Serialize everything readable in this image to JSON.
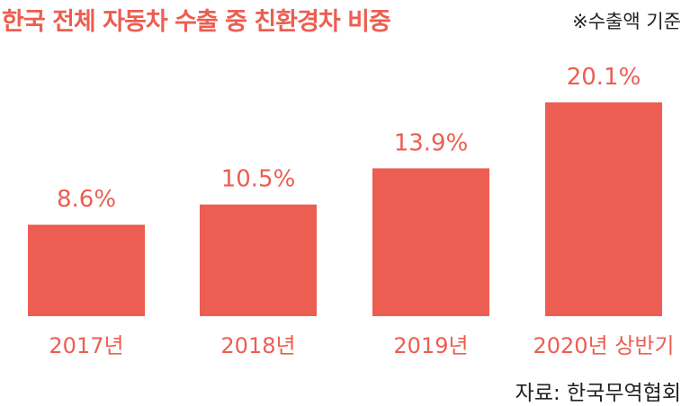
{
  "header": {
    "title": "한국 전체 자동차 수출 중 친환경차 비중",
    "note": "※수출액 기준"
  },
  "footer": {
    "source": "자료: 한국무역협회"
  },
  "colors": {
    "bar": "#EC5E51",
    "title": "#EC5E51",
    "label": "#EC5E51"
  },
  "chart_data": {
    "type": "bar",
    "categories": [
      "2017년",
      "2018년",
      "2019년",
      "2020년 상반기"
    ],
    "values": [
      8.6,
      10.5,
      13.9,
      20.1
    ],
    "value_labels": [
      "8.6%",
      "10.5%",
      "13.9%",
      "20.1%"
    ],
    "title": "한국 전체 자동차 수출 중 친환경차 비중",
    "xlabel": "",
    "ylabel": "",
    "grid": false,
    "legend": "none"
  }
}
